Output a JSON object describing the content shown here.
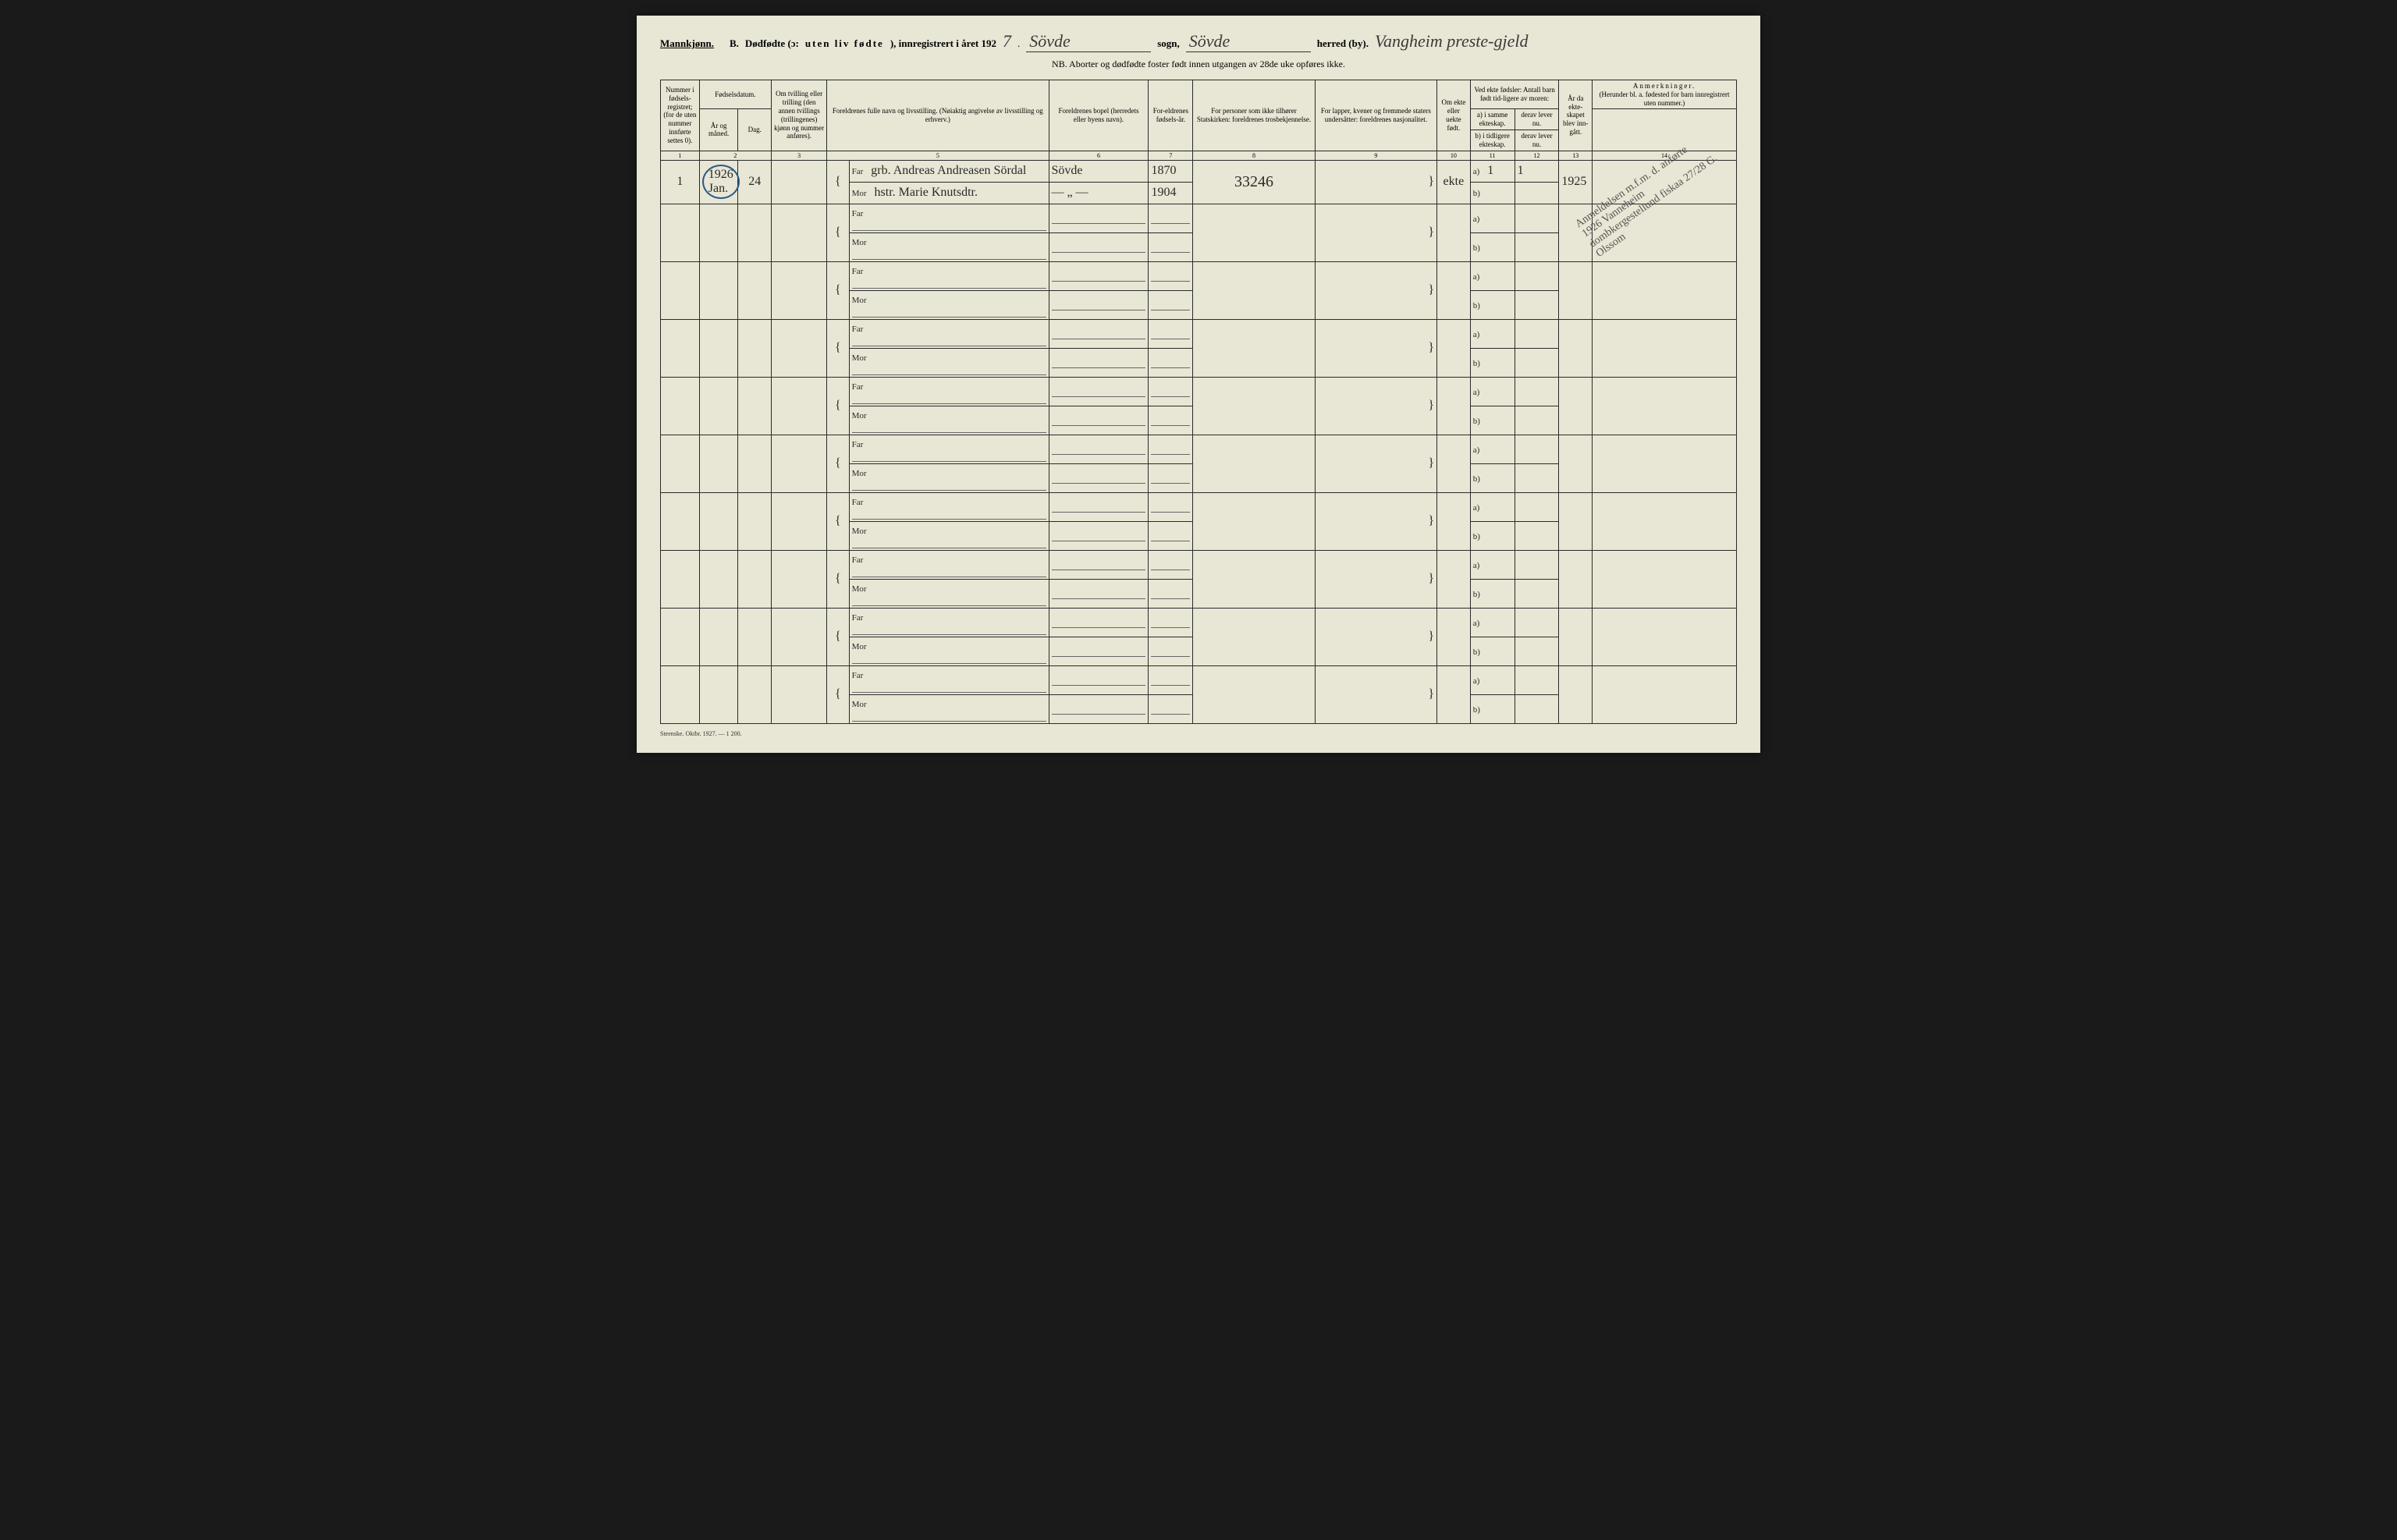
{
  "header": {
    "gender": "Mannkjønn.",
    "section": "B.",
    "title_prefix": "Dødfødte (ɔ:",
    "title_spaced": "uten liv fødte",
    "title_suffix": "), innregistrert i året 192",
    "year_suffix": "7",
    "sogn_label": "sogn,",
    "sogn_value": "Sövde",
    "herred_label": "herred (by).",
    "herred_value": "Sövde",
    "herred_extra": "Vangheim preste-gjeld",
    "subheader": "NB. Aborter og dødfødte foster født innen utgangen av 28de uke opføres ikke."
  },
  "columns": {
    "c1": "Nummer i fødsels-registret; (for de uten nummer innførte settes 0).",
    "c2": "Fødselsdatum.",
    "c2a": "År og måned.",
    "c2b": "Dag.",
    "c3": "Om tvilling eller trilling (den annen tvillings (trillingenes) kjønn og nummer anføres).",
    "c5": "Foreldrenes fulle navn og livsstilling. (Nøiaktig angivelse av livsstilling og erhverv.)",
    "c6": "Foreldrenes bopel (herredets eller byens navn).",
    "c7": "For-eldrenes fødsels-år.",
    "c8": "For personer som ikke tilhører Statskirken: foreldrenes trosbekjennelse.",
    "c9": "For lapper, kvener og fremmede staters undersåtter: foreldrenes nasjonalitet.",
    "c10": "Om ekte eller uekte født.",
    "c11_top": "Ved ekte fødsler: Antall barn født tid-ligere av moren:",
    "c11a": "a) i samme ekteskap.",
    "c11b": "b) i tidligere ekteskap.",
    "c12a": "derav lever nu.",
    "c12b": "derav lever nu.",
    "c13": "År da ekte-skapet blev inn-gått.",
    "c14": "Anmerkninger.",
    "c14_sub": "(Herunder bl. a. fødested for barn innregistrert uten nummer.)"
  },
  "col_numbers": [
    "1",
    "2",
    "3",
    "4",
    "5",
    "6",
    "7",
    "8",
    "9",
    "10",
    "11",
    "12",
    "13",
    "14"
  ],
  "parent_labels": {
    "far": "Far",
    "mor": "Mor"
  },
  "ab_labels": {
    "a": "a)",
    "b": "b)"
  },
  "entry": {
    "num": "1",
    "year_month": "1926 Jan.",
    "day": "24",
    "far_name": "grb. Andreas Andreasen Sördal",
    "mor_name": "hstr. Marie Knutsdtr.",
    "far_bopel": "Sövde",
    "mor_bopel": "— „ —",
    "far_year": "1870",
    "mor_year": "1904",
    "col8": "33246",
    "ekte": "ekte",
    "a_val": "1",
    "a_derav": "1",
    "year_married": "1925"
  },
  "diagonal_note": "Anmeldelsen m.f.m. d. anførte 1926 Vanneheim dombkergestellund fiskaa 27/28 G. Olssom",
  "footer": "Steenske. Oktbr. 1927. — 1 200."
}
